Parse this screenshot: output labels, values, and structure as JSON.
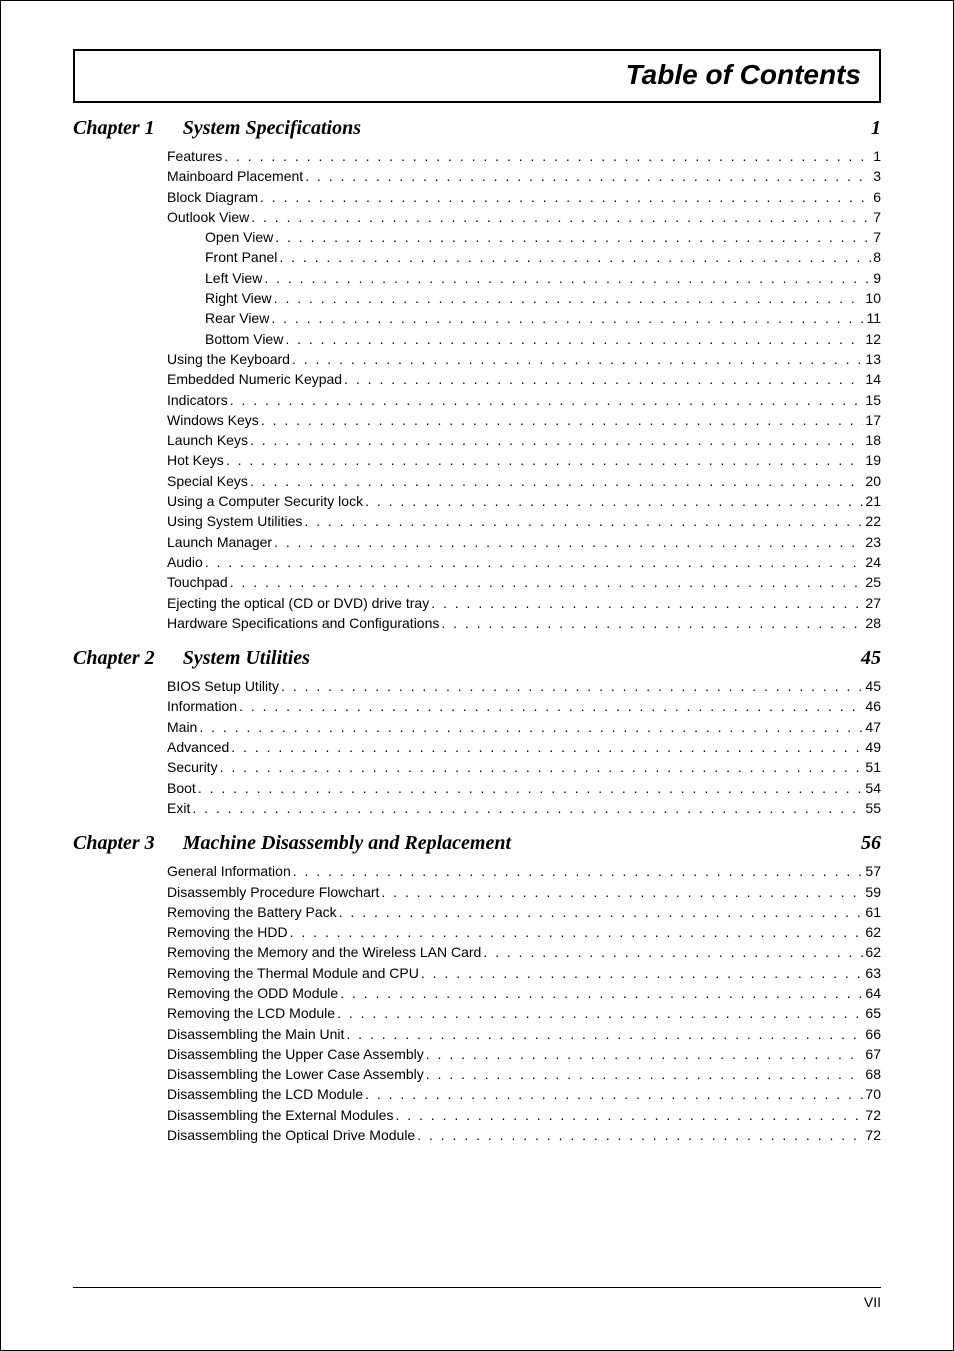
{
  "title": "Table of Contents",
  "footer": "VII",
  "chapters": [
    {
      "label": "Chapter 1",
      "title": "System Specifications",
      "page": "1",
      "entries": [
        {
          "level": 1,
          "label": "Features",
          "page": "1"
        },
        {
          "level": 1,
          "label": "Mainboard Placement",
          "page": "3"
        },
        {
          "level": 1,
          "label": "Block Diagram",
          "page": "6"
        },
        {
          "level": 1,
          "label": "Outlook View",
          "page": "7"
        },
        {
          "level": 2,
          "label": "Open View",
          "page": "7"
        },
        {
          "level": 2,
          "label": "Front Panel",
          "page": "8"
        },
        {
          "level": 2,
          "label": "Left View",
          "page": "9"
        },
        {
          "level": 2,
          "label": "Right View",
          "page": "10"
        },
        {
          "level": 2,
          "label": "Rear View",
          "page": "11"
        },
        {
          "level": 2,
          "label": "Bottom View",
          "page": "12"
        },
        {
          "level": 1,
          "label": "Using the Keyboard",
          "page": "13"
        },
        {
          "level": 1,
          "label": "Embedded Numeric Keypad",
          "page": "14"
        },
        {
          "level": 1,
          "label": "Indicators",
          "page": "15"
        },
        {
          "level": 1,
          "label": "Windows Keys",
          "page": "17"
        },
        {
          "level": 1,
          "label": "Launch Keys",
          "page": "18"
        },
        {
          "level": 1,
          "label": "Hot Keys",
          "page": "19"
        },
        {
          "level": 1,
          "label": "Special Keys",
          "page": "20"
        },
        {
          "level": 1,
          "label": "Using a Computer Security lock",
          "page": "21"
        },
        {
          "level": 1,
          "label": "Using System Utilities",
          "page": "22"
        },
        {
          "level": 1,
          "label": "Launch Manager",
          "page": "23"
        },
        {
          "level": 1,
          "label": "Audio",
          "page": "24"
        },
        {
          "level": 1,
          "label": "Touchpad",
          "page": "25"
        },
        {
          "level": 1,
          "label": "Ejecting the optical (CD or DVD) drive tray",
          "page": "27"
        },
        {
          "level": 1,
          "label": "Hardware Specifications and Configurations",
          "page": "28"
        }
      ]
    },
    {
      "label": "Chapter 2",
      "title": "System Utilities",
      "page": "45",
      "entries": [
        {
          "level": 1,
          "label": "BIOS Setup Utility",
          "page": "45"
        },
        {
          "level": 1,
          "label": "Information",
          "page": "46"
        },
        {
          "level": 1,
          "label": "Main",
          "page": "47"
        },
        {
          "level": 1,
          "label": "Advanced",
          "page": "49"
        },
        {
          "level": 1,
          "label": "Security",
          "page": "51"
        },
        {
          "level": 1,
          "label": "Boot",
          "page": "54"
        },
        {
          "level": 1,
          "label": "Exit",
          "page": "55"
        }
      ]
    },
    {
      "label": "Chapter 3",
      "title": "Machine Disassembly and Replacement",
      "page": "56",
      "entries": [
        {
          "level": 1,
          "label": "General Information",
          "page": "57"
        },
        {
          "level": 1,
          "label": "Disassembly Procedure Flowchart",
          "page": "59"
        },
        {
          "level": 1,
          "label": "Removing the Battery Pack",
          "page": "61"
        },
        {
          "level": 1,
          "label": "Removing the HDD",
          "page": "62"
        },
        {
          "level": 1,
          "label": "Removing the Memory and the Wireless LAN Card",
          "page": "62"
        },
        {
          "level": 1,
          "label": "Removing the Thermal Module and CPU",
          "page": "63"
        },
        {
          "level": 1,
          "label": "Removing the ODD Module",
          "page": "64"
        },
        {
          "level": 1,
          "label": "Removing the LCD Module",
          "page": "65"
        },
        {
          "level": 1,
          "label": "Disassembling the Main Unit",
          "page": "66"
        },
        {
          "level": 1,
          "label": "Disassembling the Upper Case Assembly",
          "page": "67"
        },
        {
          "level": 1,
          "label": "Disassembling the Lower Case Assembly",
          "page": "68"
        },
        {
          "level": 1,
          "label": "Disassembling the LCD Module",
          "page": "70"
        },
        {
          "level": 1,
          "label": "Disassembling the External Modules",
          "page": "72"
        },
        {
          "level": 1,
          "label": "Disassembling the Optical Drive Module",
          "page": "72"
        }
      ]
    }
  ]
}
